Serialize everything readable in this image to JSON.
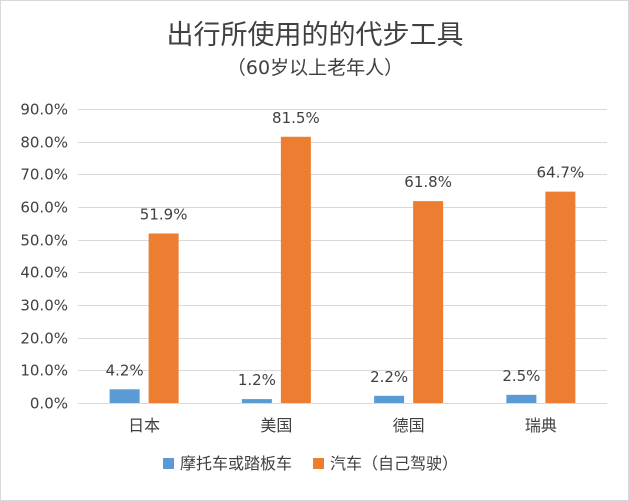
{
  "chart_data": {
    "type": "bar",
    "title": "出行所使用的的代步工具",
    "subtitle": "（60岁以上老年人）",
    "categories": [
      "日本",
      "美国",
      "德国",
      "瑞典"
    ],
    "series": [
      {
        "name": "摩托车或踏板车",
        "values": [
          4.2,
          1.2,
          2.2,
          2.5
        ],
        "labels": [
          "4.2%",
          "1.2%",
          "2.2%",
          "2.5%"
        ],
        "color": "#5b9bd5"
      },
      {
        "name": "汽车（自己驾驶）",
        "values": [
          51.9,
          81.5,
          61.8,
          64.7
        ],
        "labels": [
          "51.9%",
          "81.5%",
          "61.8%",
          "64.7%"
        ],
        "color": "#ed7d31"
      }
    ],
    "yticks": [
      "0.0%",
      "10.0%",
      "20.0%",
      "30.0%",
      "40.0%",
      "50.0%",
      "60.0%",
      "70.0%",
      "80.0%",
      "90.0%"
    ],
    "ylim": [
      0,
      90
    ],
    "ytick_step": 10,
    "grid": true,
    "legend_position": "bottom",
    "gridline_color": "#d9d9d9"
  }
}
